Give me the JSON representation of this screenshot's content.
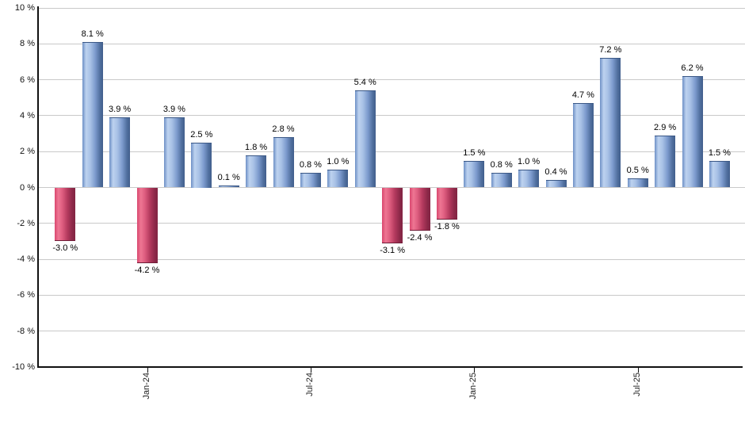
{
  "chart_data": {
    "type": "bar",
    "title": "",
    "xlabel": "",
    "ylabel": "",
    "unit": "%",
    "ylim": [
      -10,
      10
    ],
    "y_tick_step": 2,
    "grid": true,
    "legend": "none",
    "values": [
      -3.0,
      8.1,
      3.9,
      -4.2,
      3.9,
      2.5,
      0.1,
      1.8,
      2.8,
      0.8,
      1.0,
      5.4,
      -3.1,
      -2.4,
      -1.8,
      1.5,
      0.8,
      1.0,
      0.4,
      4.7,
      7.2,
      0.5,
      2.9,
      6.2,
      1.5
    ],
    "bar_value_labels": [
      "-3.0 %",
      "8.1 %",
      "3.9 %",
      "-4.2 %",
      "3.9 %",
      "2.5 %",
      "0.1 %",
      "1.8 %",
      "2.8 %",
      "0.8 %",
      "1.0 %",
      "5.4 %",
      "-3.1 %",
      "-2.4 %",
      "-1.8 %",
      "1.5 %",
      "0.8 %",
      "1.0 %",
      "0.4 %",
      "4.7 %",
      "7.2 %",
      "0.5 %",
      "2.9 %",
      "6.2 %",
      "1.5 %"
    ],
    "y_tick_labels": [
      "10 %",
      "8 %",
      "6 %",
      "4 %",
      "2 %",
      "0 %",
      "-2 %",
      "-4 %",
      "-6 %",
      "-8 %",
      "-10 %"
    ],
    "x_ticks": [
      {
        "bar_index": 3,
        "label": "Jan-24"
      },
      {
        "bar_index": 9,
        "label": "Jul-24"
      },
      {
        "bar_index": 15,
        "label": "Jan-25"
      },
      {
        "bar_index": 21,
        "label": "Jul-25"
      }
    ],
    "colors": {
      "positive_gradient": [
        "#6e90c6",
        "#bdd2ef",
        "#a9c2e6",
        "#7d9bce",
        "#51709f",
        "#415e8c"
      ],
      "negative_gradient": [
        "#d9476f",
        "#ee7693",
        "#dd5c7e",
        "#b43a5e",
        "#8d2949",
        "#822443"
      ],
      "positive_edge": "#3b5886",
      "negative_edge": "#701d38",
      "grid": "#c9c9c9",
      "axis": "#111111",
      "value_label_text": "#000000",
      "tick_label_text": "#222222",
      "background": "#ffffff"
    }
  }
}
